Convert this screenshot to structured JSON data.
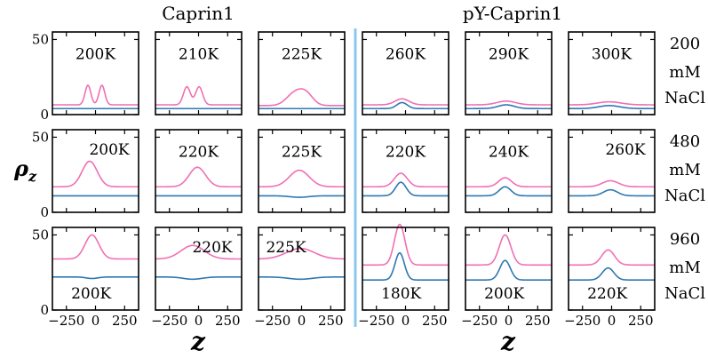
{
  "chart_data": {
    "type": "line",
    "column_headers": {
      "caprin1": "Caprin1",
      "py_caprin1": "pY-Caprin1"
    },
    "xlabel": "z",
    "ylabel": "ρ",
    "ylabel_sub": "z",
    "xlim": [
      -370,
      370
    ],
    "ylim": [
      0,
      55
    ],
    "x_ticks": [
      -250,
      0,
      250
    ],
    "x_tick_labels": [
      "−250",
      "0",
      "250"
    ],
    "y_ticks": [
      0,
      50
    ],
    "y_tick_labels": [
      "0",
      "50"
    ],
    "salt_conditions": [
      {
        "concentration": "200",
        "unit": "mM",
        "salt": "NaCl"
      },
      {
        "concentration": "480",
        "unit": "mM",
        "salt": "NaCl"
      },
      {
        "concentration": "960",
        "unit": "mM",
        "salt": "NaCl"
      }
    ],
    "panels": [
      {
        "row": 0,
        "col": 0,
        "temperature": "200K",
        "label_pos": "top-center",
        "series": [
          {
            "name": "pink",
            "color": "#f06fb4",
            "baseline": 6.5,
            "peaks": [
              [
                -65,
                13,
                25
              ],
              [
                55,
                13,
                25
              ]
            ]
          },
          {
            "name": "blue",
            "color": "#2f78b0",
            "baseline": 4,
            "peaks": []
          }
        ]
      },
      {
        "row": 0,
        "col": 1,
        "temperature": "210K",
        "label_pos": "top-center",
        "series": [
          {
            "name": "pink",
            "color": "#f06fb4",
            "baseline": 6.5,
            "peaks": [
              [
                -100,
                12,
                30
              ],
              [
                5,
                12,
                30
              ]
            ]
          },
          {
            "name": "blue",
            "color": "#2f78b0",
            "baseline": 4,
            "peaks": []
          }
        ]
      },
      {
        "row": 0,
        "col": 2,
        "temperature": "225K",
        "label_pos": "top-center",
        "series": [
          {
            "name": "pink",
            "color": "#f06fb4",
            "baseline": 6,
            "peaks": [
              [
                -60,
                8,
                70
              ],
              [
                40,
                7,
                60
              ]
            ]
          },
          {
            "name": "blue",
            "color": "#2f78b0",
            "baseline": 4,
            "peaks": []
          }
        ]
      },
      {
        "row": 0,
        "col": 3,
        "temperature": "260K",
        "label_pos": "top-center",
        "series": [
          {
            "name": "pink",
            "color": "#f06fb4",
            "baseline": 6.5,
            "peaks": [
              [
                -30,
                4,
                60
              ]
            ]
          },
          {
            "name": "blue",
            "color": "#2f78b0",
            "baseline": 4,
            "peaks": [
              [
                -30,
                4,
                45
              ]
            ]
          }
        ]
      },
      {
        "row": 0,
        "col": 4,
        "temperature": "290K",
        "label_pos": "top-center",
        "series": [
          {
            "name": "pink",
            "color": "#f06fb4",
            "baseline": 6.5,
            "peaks": [
              [
                -20,
                2.5,
                80
              ]
            ]
          },
          {
            "name": "blue",
            "color": "#2f78b0",
            "baseline": 4,
            "peaks": [
              [
                -20,
                2.5,
                70
              ]
            ]
          }
        ]
      },
      {
        "row": 0,
        "col": 5,
        "temperature": "300K",
        "label_pos": "top-center",
        "series": [
          {
            "name": "pink",
            "color": "#f06fb4",
            "baseline": 6.5,
            "peaks": [
              [
                -20,
                2,
                100
              ]
            ]
          },
          {
            "name": "blue",
            "color": "#2f78b0",
            "baseline": 4,
            "peaks": [
              [
                -20,
                2,
                90
              ]
            ]
          }
        ]
      },
      {
        "row": 1,
        "col": 0,
        "temperature": "200K",
        "label_pos": "top-right",
        "series": [
          {
            "name": "pink",
            "color": "#f06fb4",
            "baseline": 17,
            "peaks": [
              [
                -50,
                17,
                65
              ]
            ]
          },
          {
            "name": "blue",
            "color": "#2f78b0",
            "baseline": 11,
            "peaks": []
          }
        ]
      },
      {
        "row": 1,
        "col": 1,
        "temperature": "220K",
        "label_pos": "top-center",
        "series": [
          {
            "name": "pink",
            "color": "#f06fb4",
            "baseline": 17,
            "peaks": [
              [
                -10,
                13,
                70
              ]
            ]
          },
          {
            "name": "blue",
            "color": "#2f78b0",
            "baseline": 11,
            "peaks": []
          }
        ]
      },
      {
        "row": 1,
        "col": 2,
        "temperature": "225K",
        "label_pos": "top-center",
        "series": [
          {
            "name": "pink",
            "color": "#f06fb4",
            "baseline": 17,
            "peaks": [
              [
                -20,
                11,
                85
              ]
            ]
          },
          {
            "name": "blue",
            "color": "#2f78b0",
            "baseline": 11,
            "peaks": [
              [
                -20,
                -1,
                80
              ]
            ]
          }
        ]
      },
      {
        "row": 1,
        "col": 3,
        "temperature": "220K",
        "label_pos": "top-center",
        "series": [
          {
            "name": "pink",
            "color": "#f06fb4",
            "baseline": 17,
            "peaks": [
              [
                -40,
                9,
                55
              ]
            ]
          },
          {
            "name": "blue",
            "color": "#2f78b0",
            "baseline": 11,
            "peaks": [
              [
                -40,
                9,
                45
              ]
            ]
          }
        ]
      },
      {
        "row": 1,
        "col": 4,
        "temperature": "240K",
        "label_pos": "top-center",
        "series": [
          {
            "name": "pink",
            "color": "#f06fb4",
            "baseline": 17,
            "peaks": [
              [
                -30,
                6,
                55
              ]
            ]
          },
          {
            "name": "blue",
            "color": "#2f78b0",
            "baseline": 11,
            "peaks": [
              [
                -30,
                6,
                50
              ]
            ]
          }
        ]
      },
      {
        "row": 1,
        "col": 5,
        "temperature": "260K",
        "label_pos": "top-right",
        "series": [
          {
            "name": "pink",
            "color": "#f06fb4",
            "baseline": 17,
            "peaks": [
              [
                -10,
                4,
                70
              ]
            ]
          },
          {
            "name": "blue",
            "color": "#2f78b0",
            "baseline": 11,
            "peaks": [
              [
                -10,
                4,
                60
              ]
            ]
          }
        ]
      },
      {
        "row": 2,
        "col": 0,
        "temperature": "200K",
        "label_pos": "bottom-center",
        "series": [
          {
            "name": "pink",
            "color": "#f06fb4",
            "baseline": 34,
            "peaks": [
              [
                -30,
                16,
                60
              ]
            ]
          },
          {
            "name": "blue",
            "color": "#2f78b0",
            "baseline": 22,
            "peaks": [
              [
                -30,
                -1,
                50
              ]
            ]
          }
        ]
      },
      {
        "row": 2,
        "col": 1,
        "temperature": "220K",
        "label_pos": "top-right",
        "series": [
          {
            "name": "pink",
            "color": "#f06fb4",
            "baseline": 34,
            "peaks": [
              [
                -50,
                9,
                100
              ]
            ]
          },
          {
            "name": "blue",
            "color": "#2f78b0",
            "baseline": 22,
            "peaks": [
              [
                -50,
                -1.5,
                80
              ]
            ]
          }
        ]
      },
      {
        "row": 2,
        "col": 2,
        "temperature": "225K",
        "label_pos": "top-left",
        "series": [
          {
            "name": "pink",
            "color": "#f06fb4",
            "baseline": 34,
            "peaks": [
              [
                -10,
                7,
                120
              ]
            ]
          },
          {
            "name": "blue",
            "color": "#2f78b0",
            "baseline": 22,
            "peaks": [
              [
                -10,
                -1.5,
                100
              ]
            ]
          }
        ]
      },
      {
        "row": 2,
        "col": 3,
        "temperature": "180K",
        "label_pos": "bottom-center",
        "series": [
          {
            "name": "pink",
            "color": "#f06fb4",
            "baseline": 30,
            "peaks": [
              [
                -50,
                27,
                45
              ]
            ]
          },
          {
            "name": "blue",
            "color": "#2f78b0",
            "baseline": 20,
            "peaks": [
              [
                -50,
                18,
                40
              ]
            ]
          }
        ]
      },
      {
        "row": 2,
        "col": 4,
        "temperature": "200K",
        "label_pos": "bottom-center",
        "series": [
          {
            "name": "pink",
            "color": "#f06fb4",
            "baseline": 30,
            "peaks": [
              [
                -30,
                20,
                50
              ]
            ]
          },
          {
            "name": "blue",
            "color": "#2f78b0",
            "baseline": 20,
            "peaks": [
              [
                -30,
                13,
                45
              ]
            ]
          }
        ]
      },
      {
        "row": 2,
        "col": 5,
        "temperature": "220K",
        "label_pos": "bottom-center",
        "series": [
          {
            "name": "pink",
            "color": "#f06fb4",
            "baseline": 30,
            "peaks": [
              [
                -30,
                10,
                55
              ]
            ]
          },
          {
            "name": "blue",
            "color": "#2f78b0",
            "baseline": 20,
            "peaks": [
              [
                -30,
                8,
                50
              ]
            ]
          }
        ]
      }
    ]
  }
}
